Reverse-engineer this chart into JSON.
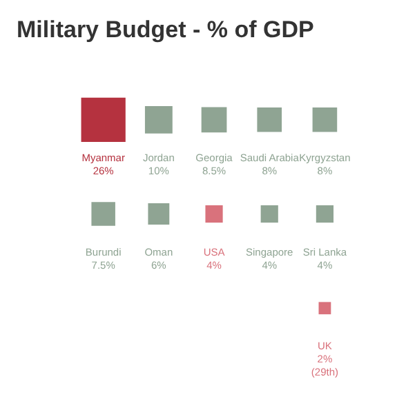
{
  "chart_data": {
    "type": "other",
    "title": "Military Budget - % of GDP",
    "categories": [
      "Myanmar",
      "Jordan",
      "Georgia",
      "Saudi Arabia",
      "Kyrgyzstan",
      "Burundi",
      "Oman",
      "USA",
      "Singapore",
      "Sri Lanka",
      "UK"
    ],
    "values": [
      26,
      10,
      8.5,
      8,
      8,
      7.5,
      6,
      4,
      4,
      4,
      2
    ],
    "value_labels": [
      "26%",
      "10%",
      "8.5%",
      "8%",
      "8%",
      "7.5%",
      "6%",
      "4%",
      "4%",
      "4%",
      "2% (29th)"
    ],
    "colors": [
      "#b5323f",
      "#8fa493",
      "#8fa493",
      "#8fa493",
      "#8fa493",
      "#8fa493",
      "#8fa493",
      "#d9727c",
      "#8fa493",
      "#8fa493",
      "#d9727c"
    ]
  }
}
